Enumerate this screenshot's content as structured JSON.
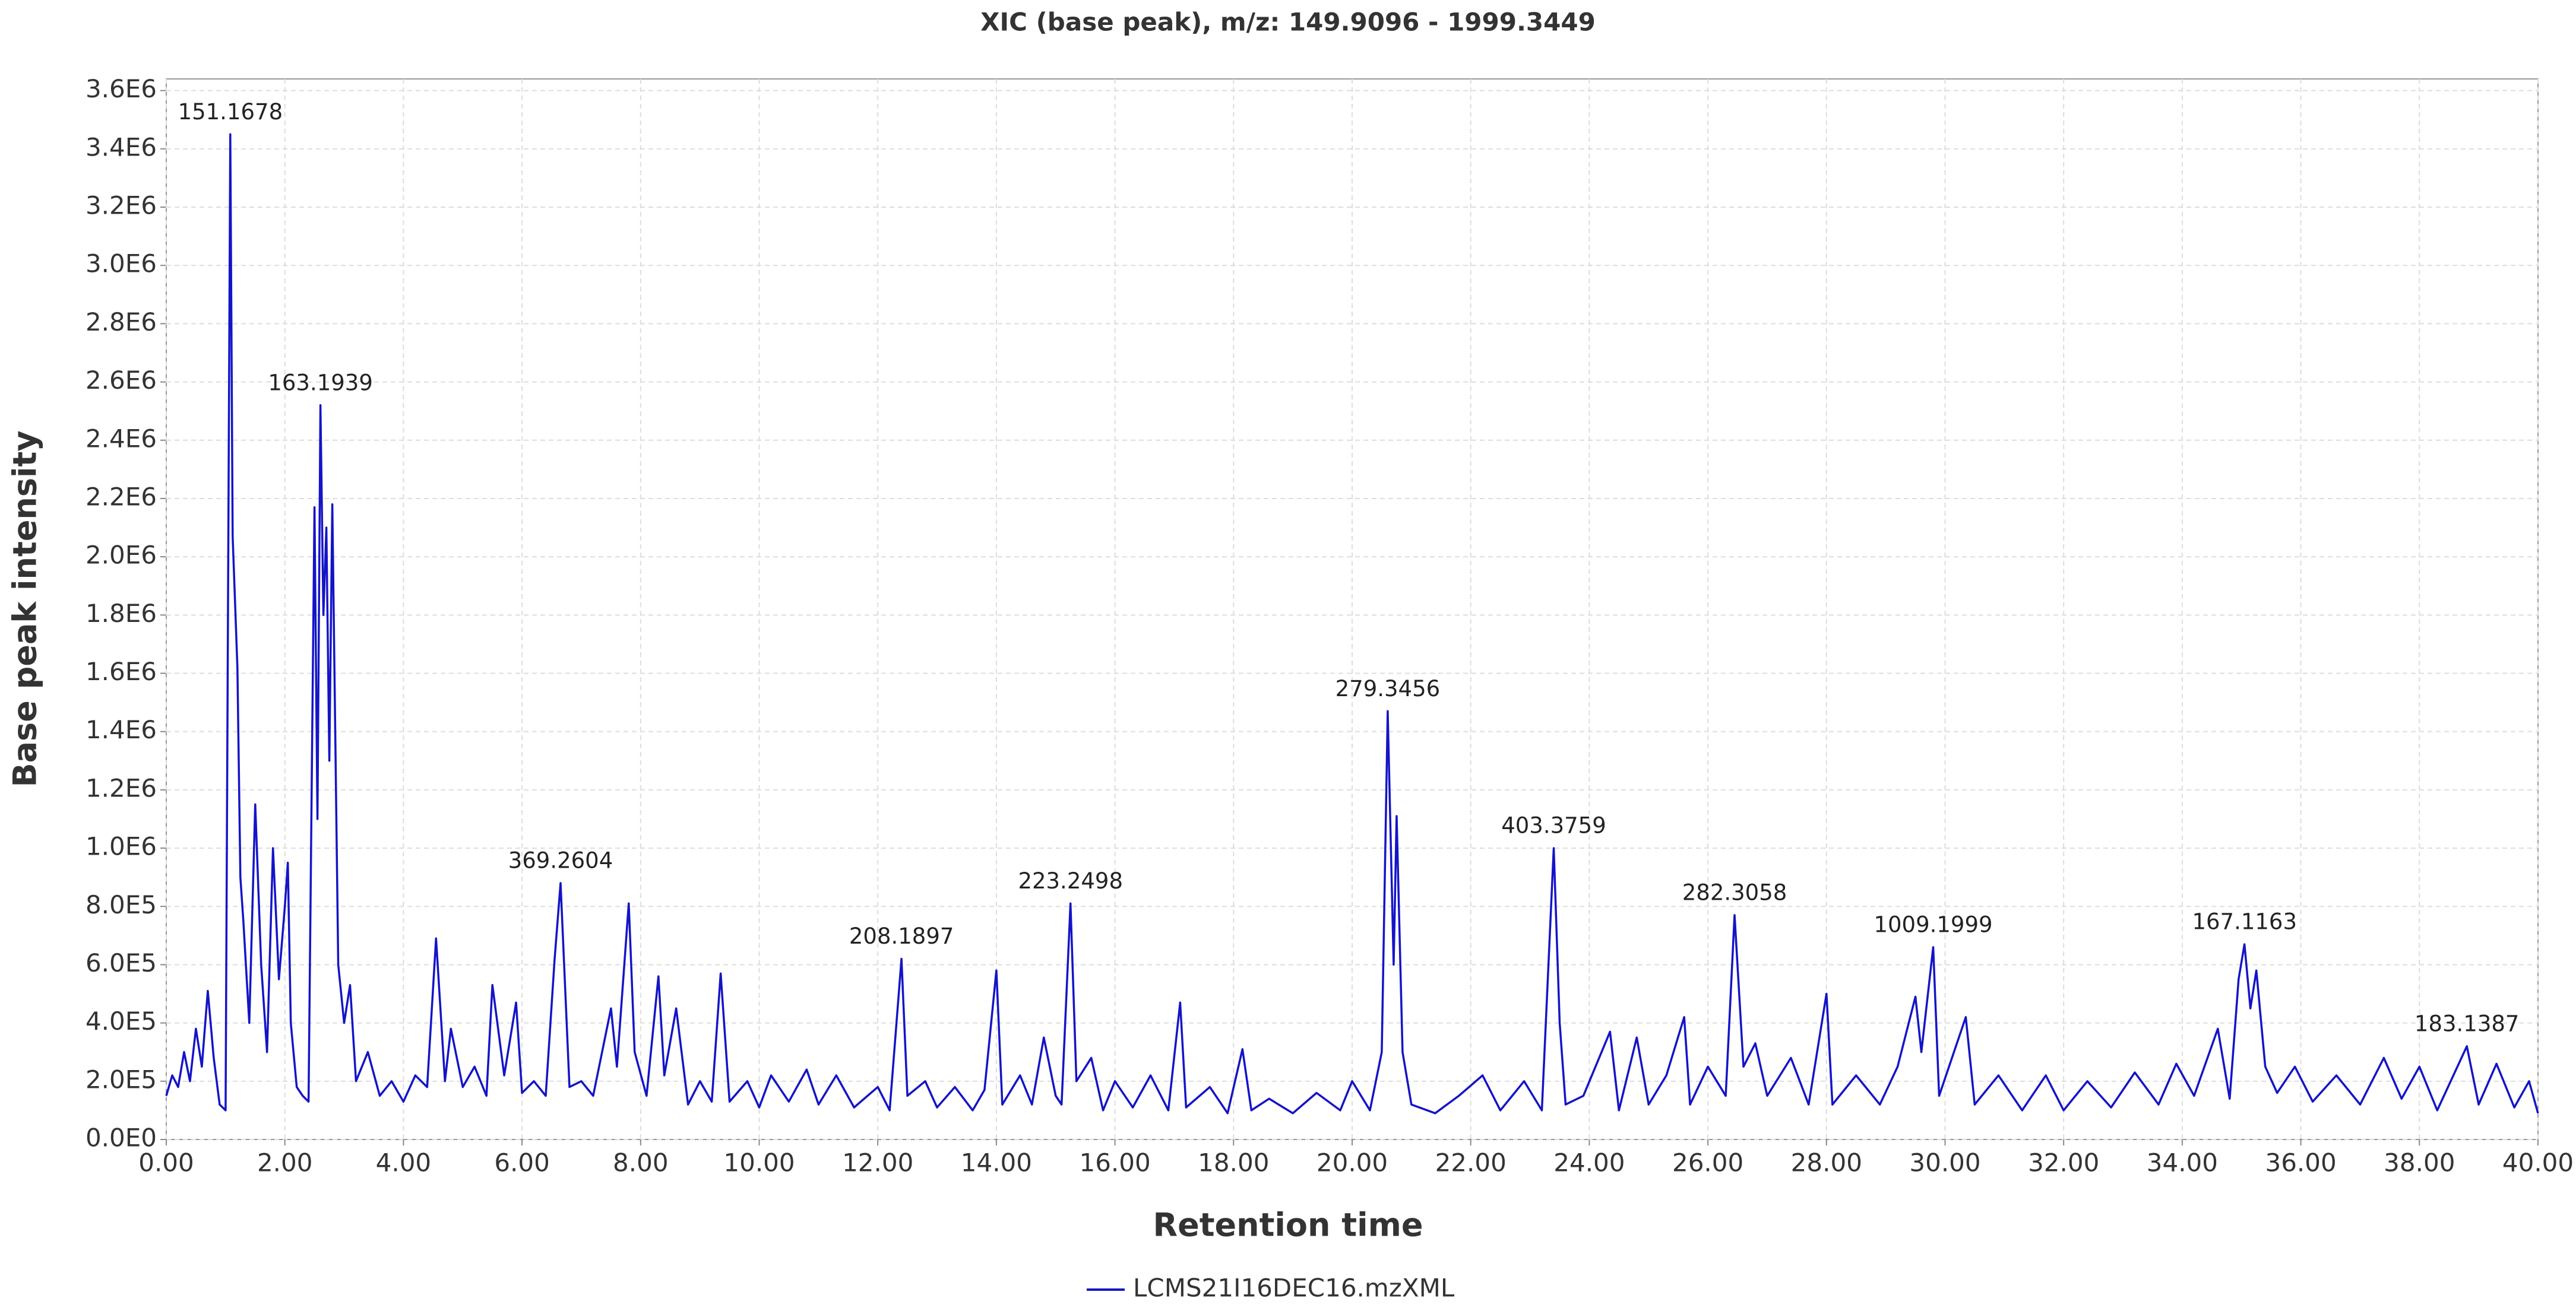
{
  "chart_data": {
    "type": "line",
    "title": "XIC (base peak), m/z: 149.9096 - 1999.3449",
    "x_label": "Retention time",
    "y_label": "Base peak intensity",
    "xlim": [
      0,
      40
    ],
    "ylim": [
      0,
      3640000
    ],
    "xticks": [
      {
        "value": 0,
        "label": "0.00"
      },
      {
        "value": 2,
        "label": "2.00"
      },
      {
        "value": 4,
        "label": "4.00"
      },
      {
        "value": 6,
        "label": "6.00"
      },
      {
        "value": 8,
        "label": "8.00"
      },
      {
        "value": 10,
        "label": "10.00"
      },
      {
        "value": 12,
        "label": "12.00"
      },
      {
        "value": 14,
        "label": "14.00"
      },
      {
        "value": 16,
        "label": "16.00"
      },
      {
        "value": 18,
        "label": "18.00"
      },
      {
        "value": 20,
        "label": "20.00"
      },
      {
        "value": 22,
        "label": "22.00"
      },
      {
        "value": 24,
        "label": "24.00"
      },
      {
        "value": 26,
        "label": "26.00"
      },
      {
        "value": 28,
        "label": "28.00"
      },
      {
        "value": 30,
        "label": "30.00"
      },
      {
        "value": 32,
        "label": "32.00"
      },
      {
        "value": 34,
        "label": "34.00"
      },
      {
        "value": 36,
        "label": "36.00"
      },
      {
        "value": 38,
        "label": "38.00"
      },
      {
        "value": 40,
        "label": "40.00"
      }
    ],
    "yticks": [
      {
        "value": 0,
        "label": "0.0E0"
      },
      {
        "value": 200000,
        "label": "2.0E5"
      },
      {
        "value": 400000,
        "label": "4.0E5"
      },
      {
        "value": 600000,
        "label": "6.0E5"
      },
      {
        "value": 800000,
        "label": "8.0E5"
      },
      {
        "value": 1000000,
        "label": "1.0E6"
      },
      {
        "value": 1200000,
        "label": "1.2E6"
      },
      {
        "value": 1400000,
        "label": "1.4E6"
      },
      {
        "value": 1600000,
        "label": "1.6E6"
      },
      {
        "value": 1800000,
        "label": "1.8E6"
      },
      {
        "value": 2000000,
        "label": "2.0E6"
      },
      {
        "value": 2200000,
        "label": "2.2E6"
      },
      {
        "value": 2400000,
        "label": "2.4E6"
      },
      {
        "value": 2600000,
        "label": "2.6E6"
      },
      {
        "value": 2800000,
        "label": "2.8E6"
      },
      {
        "value": 3000000,
        "label": "3.0E6"
      },
      {
        "value": 3200000,
        "label": "3.2E6"
      },
      {
        "value": 3400000,
        "label": "3.4E6"
      },
      {
        "value": 3600000,
        "label": "3.6E6"
      }
    ],
    "grid": true,
    "legend": "bottom",
    "x": [
      0.0,
      0.1,
      0.2,
      0.3,
      0.4,
      0.5,
      0.6,
      0.7,
      0.8,
      0.9,
      1.0,
      1.08,
      1.12,
      1.2,
      1.25,
      1.3,
      1.4,
      1.5,
      1.6,
      1.7,
      1.8,
      1.9,
      2.0,
      2.05,
      2.1,
      2.2,
      2.3,
      2.4,
      2.5,
      2.55,
      2.6,
      2.65,
      2.7,
      2.75,
      2.8,
      2.9,
      3.0,
      3.1,
      3.2,
      3.4,
      3.6,
      3.8,
      4.0,
      4.2,
      4.4,
      4.55,
      4.7,
      4.8,
      5.0,
      5.2,
      5.4,
      5.5,
      5.7,
      5.9,
      6.0,
      6.2,
      6.4,
      6.55,
      6.65,
      6.8,
      7.0,
      7.2,
      7.5,
      7.6,
      7.8,
      7.9,
      8.1,
      8.3,
      8.4,
      8.6,
      8.8,
      9.0,
      9.2,
      9.35,
      9.5,
      9.8,
      10.0,
      10.2,
      10.5,
      10.8,
      11.0,
      11.3,
      11.6,
      12.0,
      12.2,
      12.4,
      12.5,
      12.8,
      13.0,
      13.3,
      13.6,
      13.8,
      14.0,
      14.1,
      14.4,
      14.6,
      14.8,
      15.0,
      15.1,
      15.25,
      15.35,
      15.6,
      15.8,
      16.0,
      16.3,
      16.6,
      16.9,
      17.1,
      17.2,
      17.6,
      17.9,
      18.15,
      18.3,
      18.6,
      19.0,
      19.4,
      19.8,
      20.0,
      20.3,
      20.5,
      20.6,
      20.7,
      20.75,
      20.85,
      21.0,
      21.4,
      21.8,
      22.2,
      22.5,
      22.9,
      23.2,
      23.4,
      23.5,
      23.6,
      23.9,
      24.35,
      24.5,
      24.8,
      25.0,
      25.3,
      25.6,
      25.7,
      26.0,
      26.3,
      26.45,
      26.6,
      26.8,
      27.0,
      27.4,
      27.7,
      28.0,
      28.1,
      28.5,
      28.9,
      29.2,
      29.5,
      29.6,
      29.8,
      29.9,
      30.35,
      30.5,
      30.9,
      31.3,
      31.7,
      32.0,
      32.4,
      32.8,
      33.2,
      33.6,
      33.9,
      34.2,
      34.6,
      34.8,
      34.95,
      35.05,
      35.15,
      35.25,
      35.4,
      35.6,
      35.9,
      36.2,
      36.6,
      37.0,
      37.4,
      37.7,
      38.0,
      38.3,
      38.8,
      39.0,
      39.3,
      39.6,
      39.85,
      40.0
    ],
    "series": [
      {
        "name": "LCMS21I16DEC16.mzXML",
        "color": "#1414c8",
        "values": [
          150000,
          220000,
          180000,
          300000,
          200000,
          380000,
          250000,
          510000,
          280000,
          120000,
          100000,
          3450000,
          2070000,
          1620000,
          900000,
          750000,
          400000,
          1150000,
          600000,
          300000,
          1000000,
          550000,
          800000,
          950000,
          400000,
          180000,
          150000,
          130000,
          2170000,
          1100000,
          2520000,
          1800000,
          2100000,
          1300000,
          2180000,
          600000,
          400000,
          530000,
          200000,
          300000,
          150000,
          200000,
          130000,
          220000,
          180000,
          690000,
          200000,
          380000,
          180000,
          250000,
          150000,
          530000,
          220000,
          470000,
          160000,
          200000,
          150000,
          620000,
          880000,
          180000,
          200000,
          150000,
          450000,
          250000,
          810000,
          300000,
          150000,
          560000,
          220000,
          450000,
          120000,
          200000,
          130000,
          570000,
          130000,
          200000,
          110000,
          220000,
          130000,
          240000,
          120000,
          220000,
          110000,
          180000,
          100000,
          620000,
          150000,
          200000,
          110000,
          180000,
          100000,
          170000,
          580000,
          120000,
          220000,
          120000,
          350000,
          150000,
          120000,
          810000,
          200000,
          280000,
          100000,
          200000,
          110000,
          220000,
          100000,
          470000,
          110000,
          180000,
          90000,
          310000,
          100000,
          140000,
          90000,
          160000,
          100000,
          200000,
          100000,
          300000,
          1470000,
          600000,
          1110000,
          300000,
          120000,
          90000,
          150000,
          220000,
          100000,
          200000,
          100000,
          1000000,
          400000,
          120000,
          150000,
          370000,
          100000,
          350000,
          120000,
          220000,
          420000,
          120000,
          250000,
          150000,
          770000,
          250000,
          330000,
          150000,
          280000,
          120000,
          500000,
          120000,
          220000,
          120000,
          250000,
          490000,
          300000,
          660000,
          150000,
          420000,
          120000,
          220000,
          100000,
          220000,
          100000,
          200000,
          110000,
          230000,
          120000,
          260000,
          150000,
          380000,
          140000,
          550000,
          670000,
          450000,
          580000,
          250000,
          160000,
          250000,
          130000,
          220000,
          120000,
          280000,
          140000,
          250000,
          100000,
          320000,
          120000,
          260000,
          110000,
          200000,
          90000
        ]
      }
    ],
    "annotations": [
      {
        "x": 1.08,
        "y": 3450000,
        "text": "151.1678"
      },
      {
        "x": 2.6,
        "y": 2520000,
        "text": "163.1939"
      },
      {
        "x": 6.65,
        "y": 880000,
        "text": "369.2604"
      },
      {
        "x": 12.4,
        "y": 620000,
        "text": "208.1897"
      },
      {
        "x": 15.25,
        "y": 810000,
        "text": "223.2498"
      },
      {
        "x": 20.6,
        "y": 1470000,
        "text": "279.3456"
      },
      {
        "x": 23.4,
        "y": 1000000,
        "text": "403.3759"
      },
      {
        "x": 26.45,
        "y": 770000,
        "text": "282.3058"
      },
      {
        "x": 29.8,
        "y": 660000,
        "text": "1009.1999"
      },
      {
        "x": 35.05,
        "y": 670000,
        "text": "167.1163"
      },
      {
        "x": 38.8,
        "y": 320000,
        "text": "183.1387"
      }
    ]
  }
}
